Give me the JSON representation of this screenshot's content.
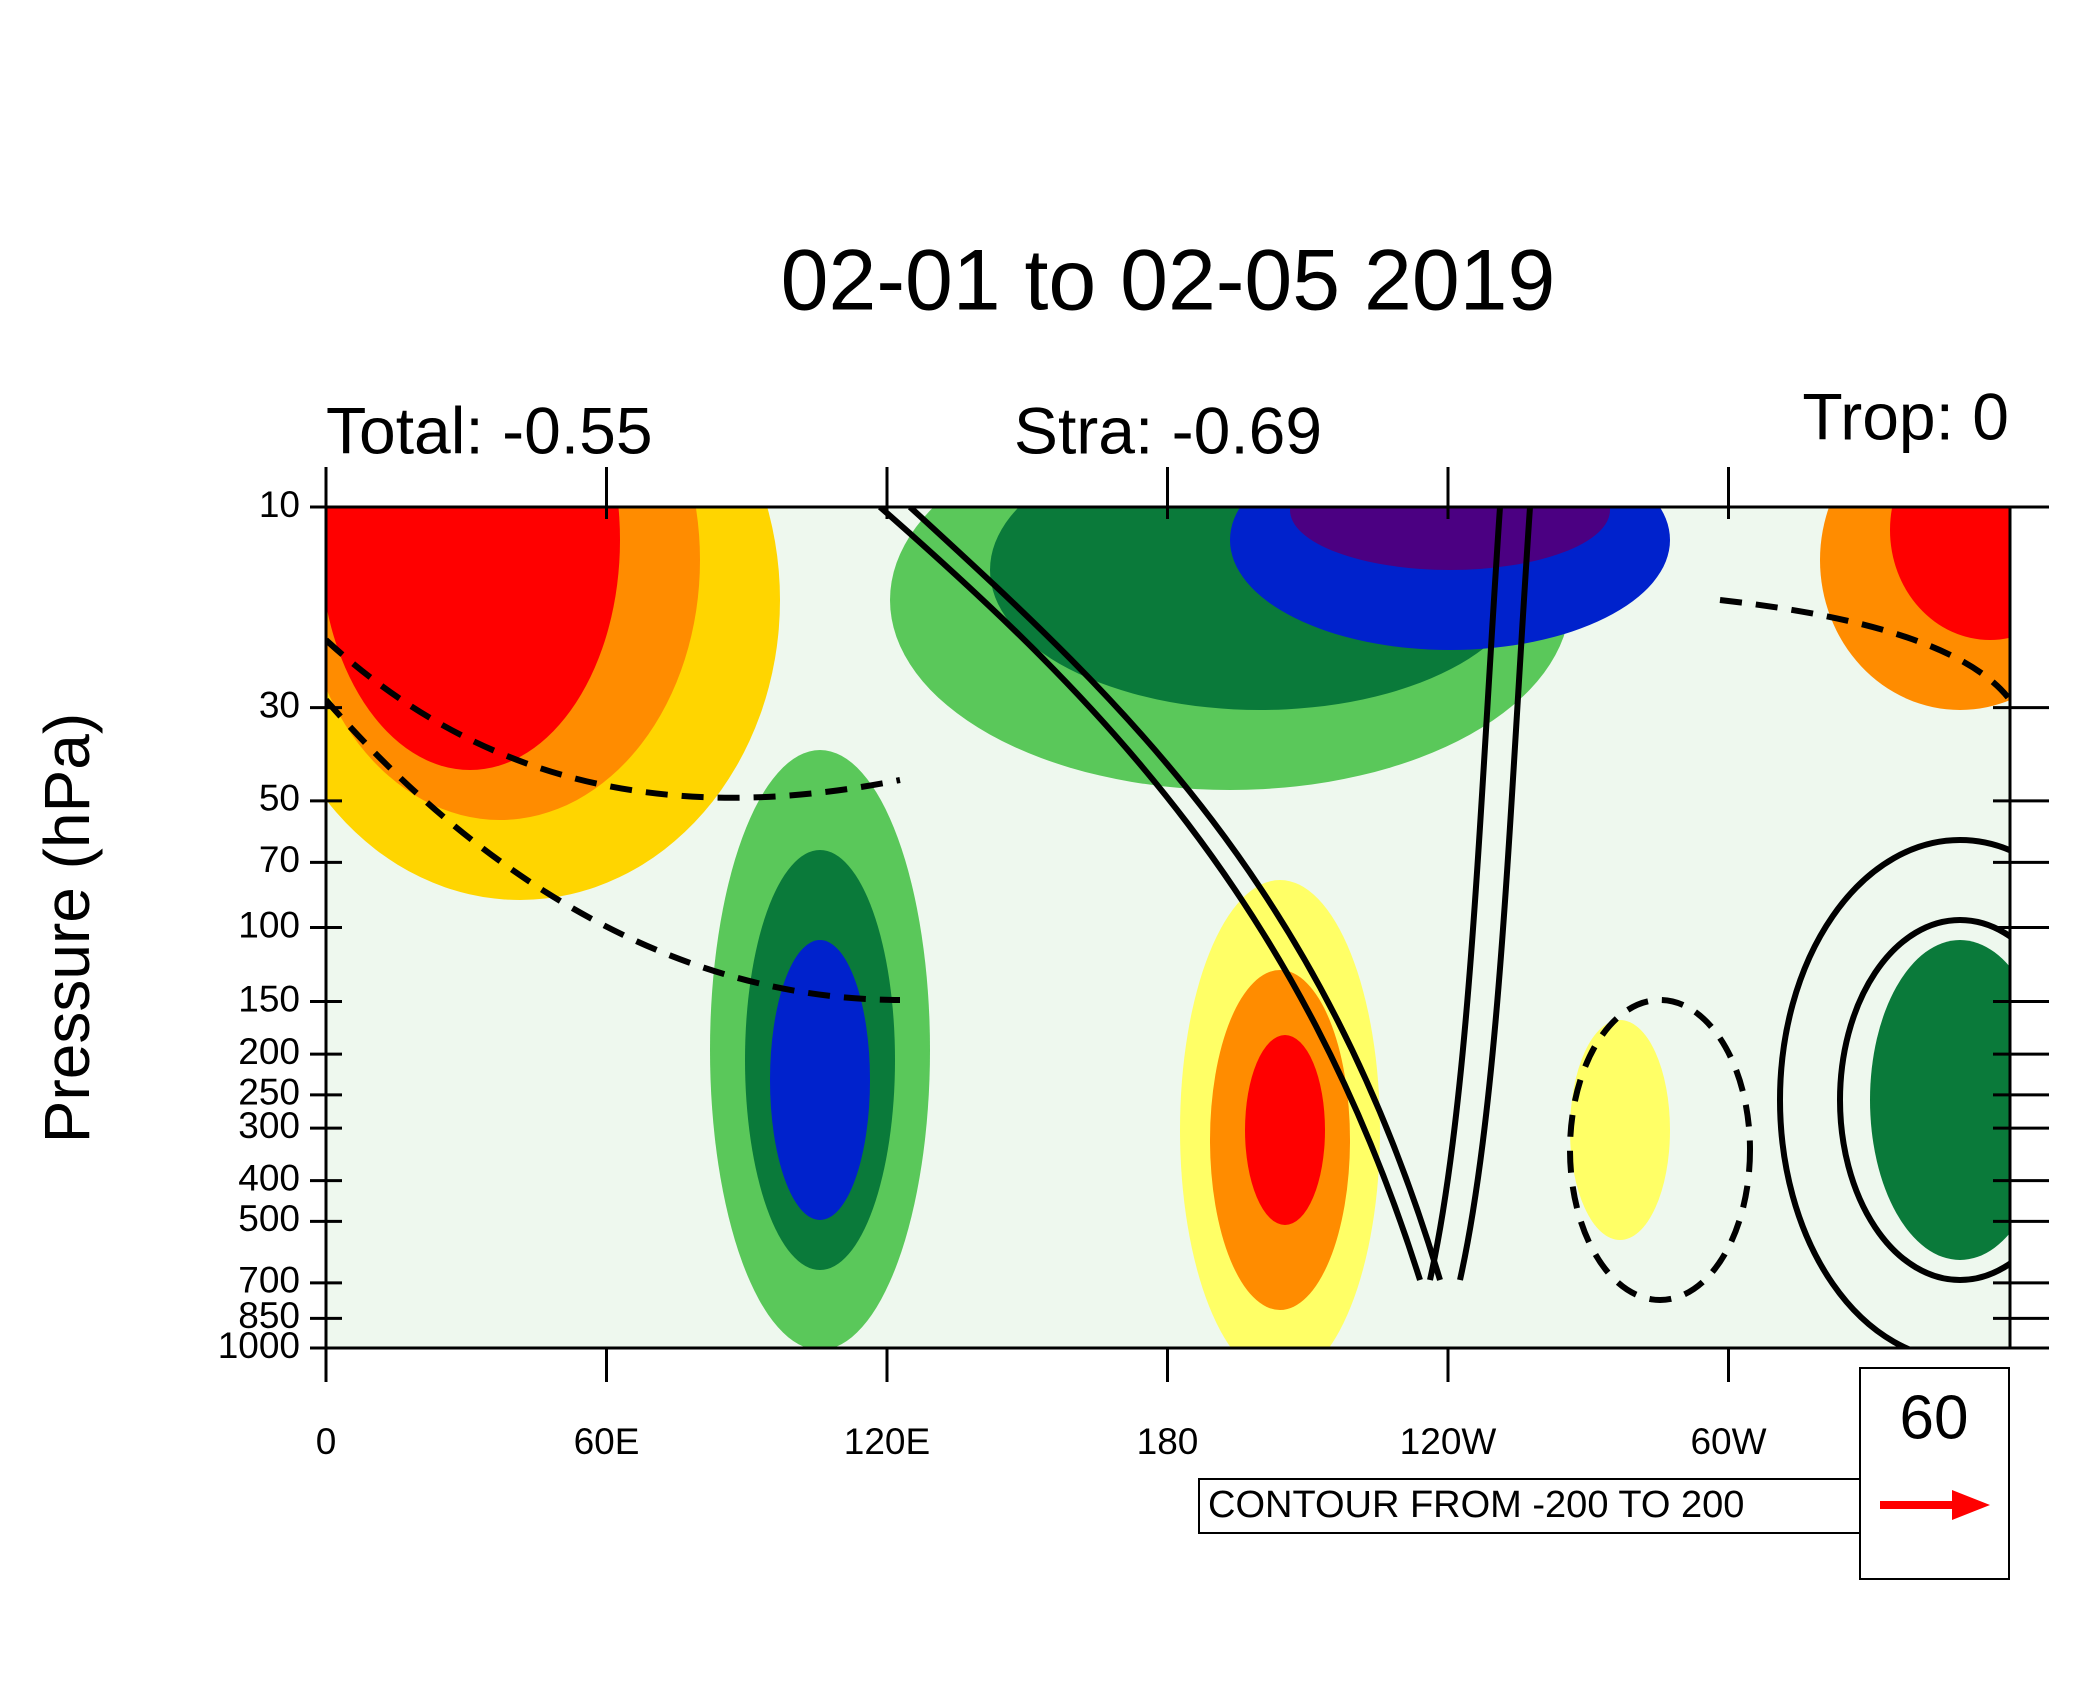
{
  "chart_data": {
    "type": "contour",
    "title": "02-01 to 02-05 2019",
    "subtitle_left": "Total: -0.55",
    "subtitle_center": "Stra: -0.69",
    "subtitle_right": "Trop: 0",
    "y_label": "Pressure (hPa)",
    "ylim": [
      1000,
      10
    ],
    "y_scale": "log",
    "yticks": [
      10,
      30,
      50,
      70,
      100,
      150,
      200,
      250,
      300,
      400,
      500,
      700,
      850,
      1000
    ],
    "xlim": [
      0,
      360
    ],
    "xticks": [
      0,
      {
        "value": 60,
        "label": "60E"
      },
      {
        "value": 120,
        "label": "120E"
      },
      180,
      {
        "value": 240,
        "label": "120W"
      },
      {
        "value": 300,
        "label": "60W"
      }
    ],
    "contour_info": "CONTOUR FROM -200 TO 200",
    "reference_vector": 60,
    "reference_vector_color": "#ff0000"
  }
}
